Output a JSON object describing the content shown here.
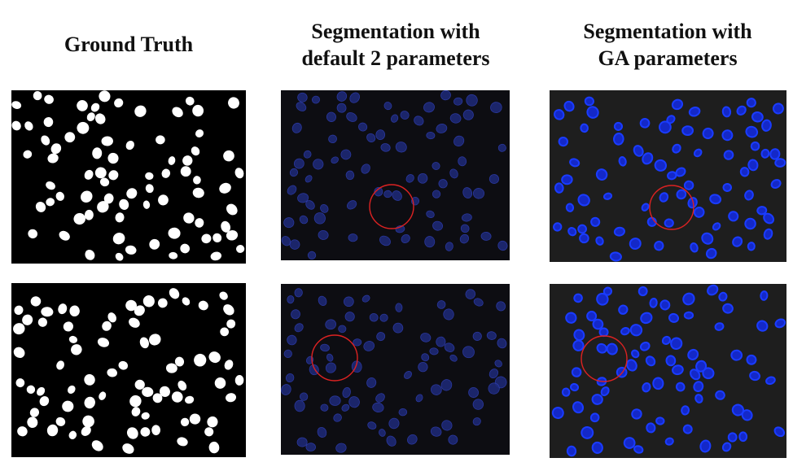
{
  "columns": [
    {
      "title": "Ground Truth"
    },
    {
      "title": "Segmentation with\ndefault 2 parameters"
    },
    {
      "title": "Segmentation with\nGA parameters"
    }
  ],
  "panels": {
    "ground_truth": {
      "background": "#000000",
      "cell_color": "#ffffff"
    },
    "default": {
      "background": "#0d0d12",
      "cell_fill": "#1e2a7a",
      "cell_outline": "#2f3fb5",
      "marker_color": "#dd2222"
    },
    "ga": {
      "background": "#1e1e1e",
      "cell_fill": "#1428c8",
      "cell_outline": "#1a3cff",
      "marker_color": "#dd2222"
    }
  }
}
